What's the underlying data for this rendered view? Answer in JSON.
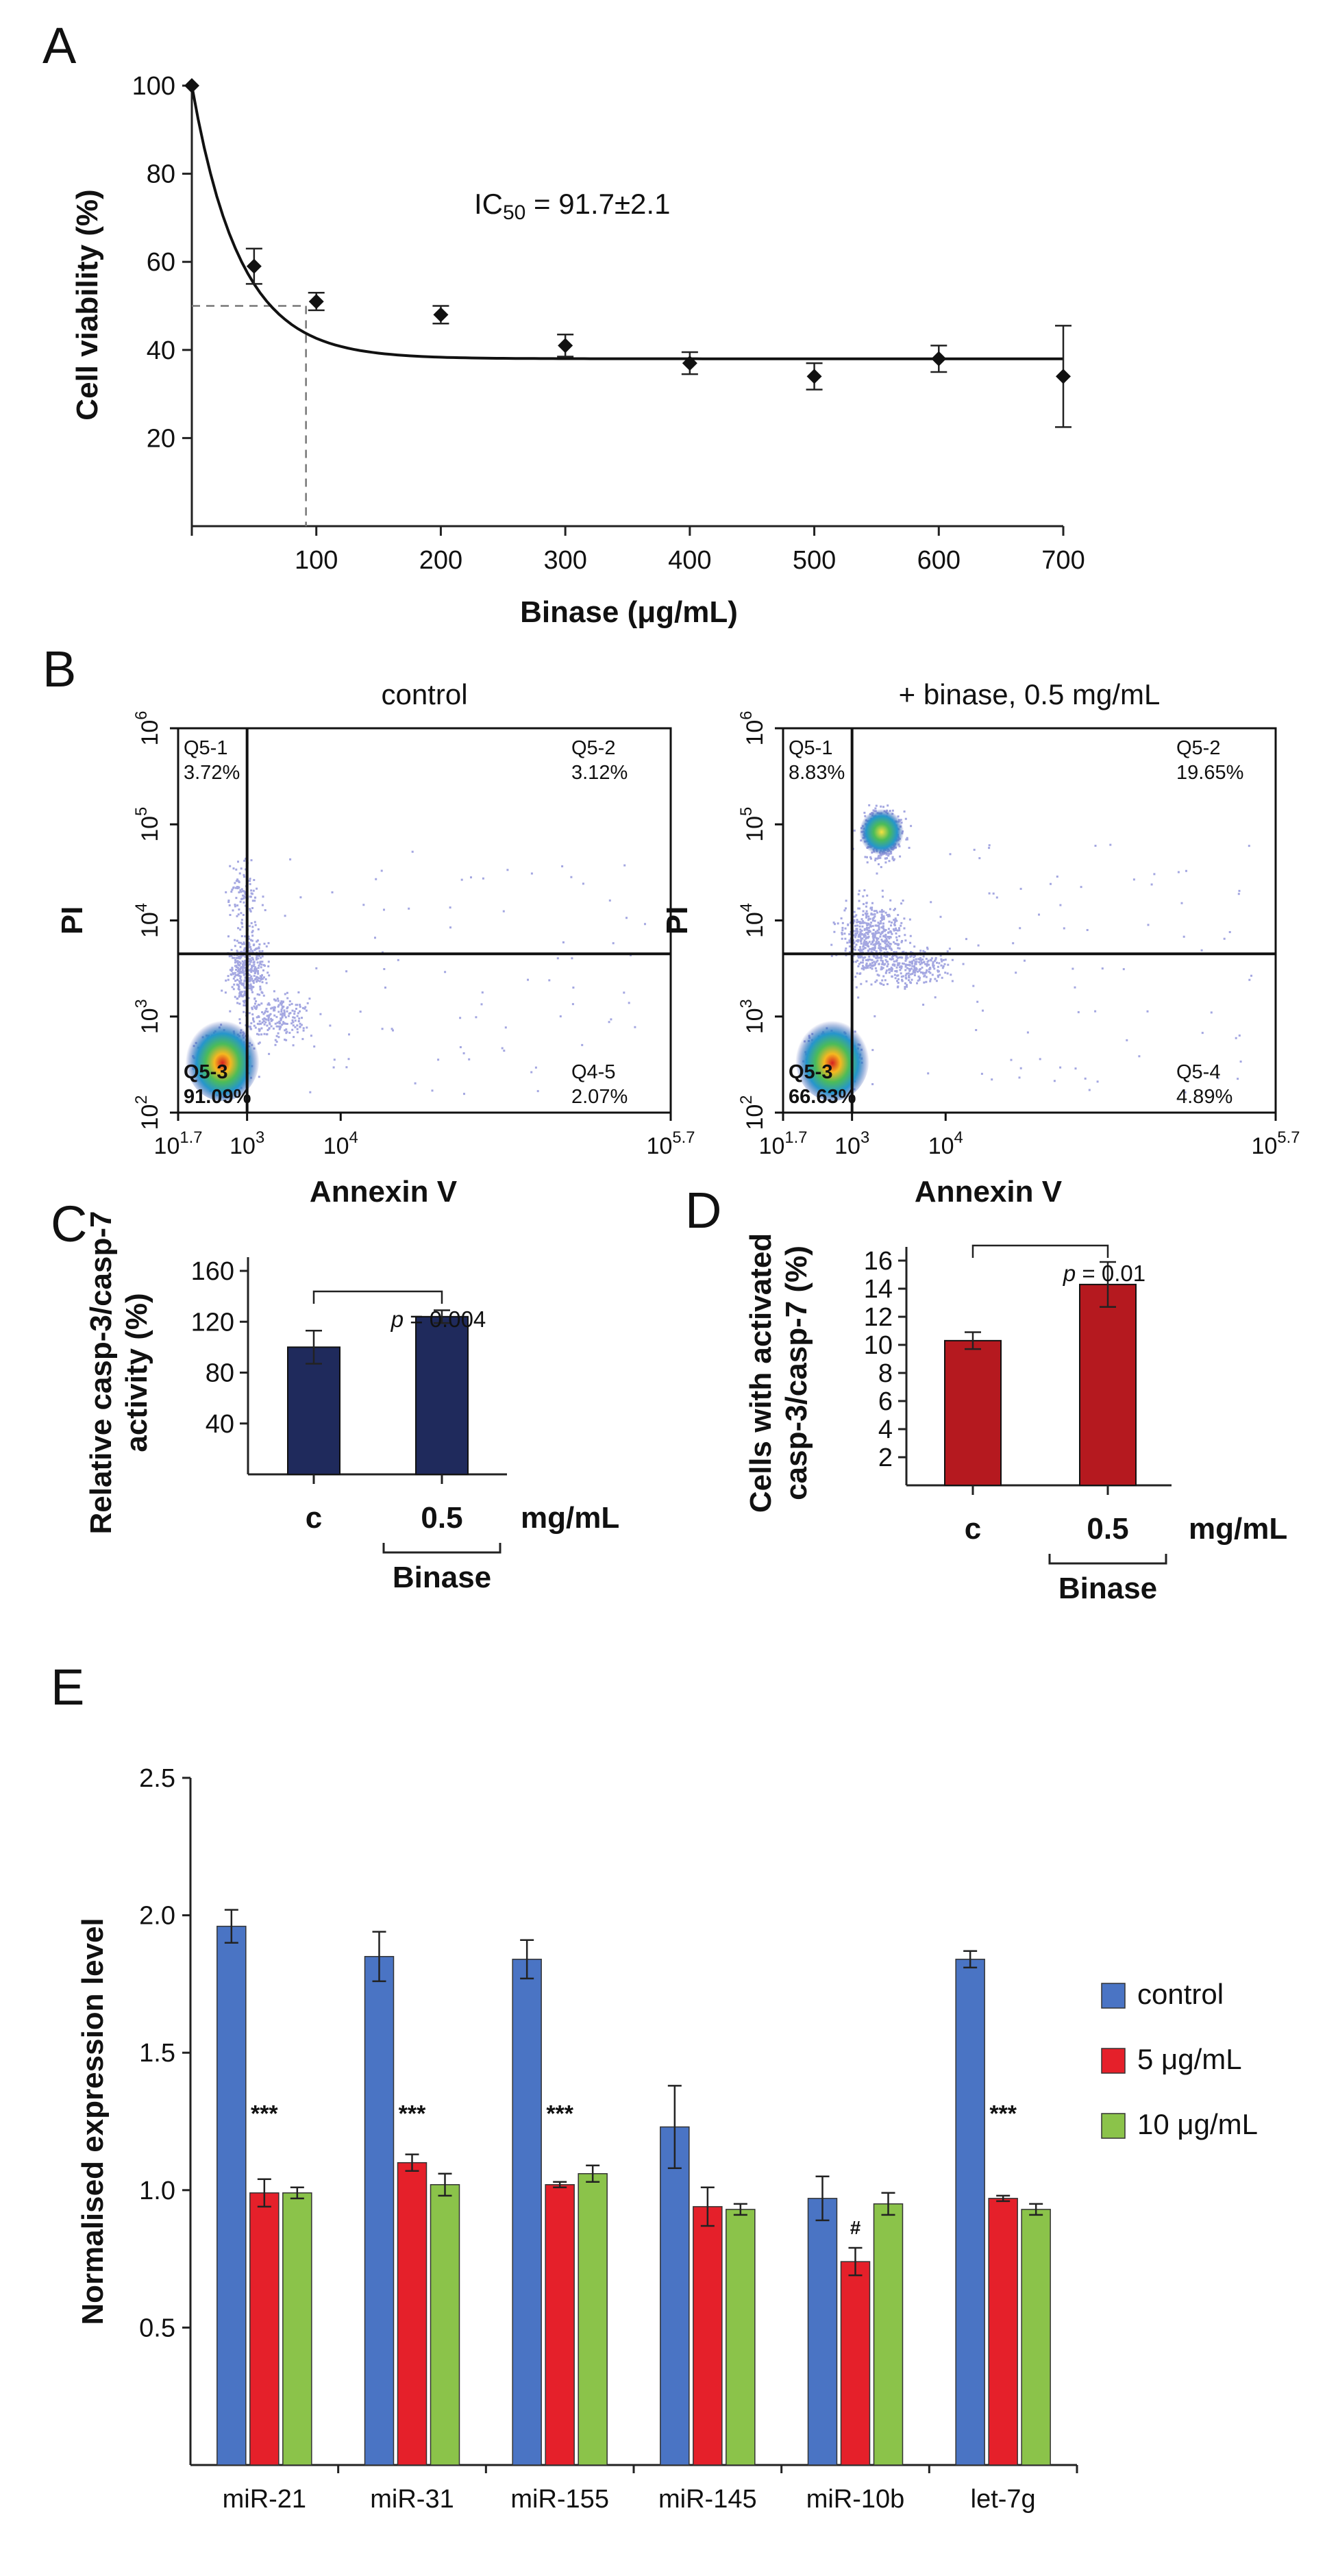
{
  "panels": {
    "A": "A",
    "B": "B",
    "C": "C",
    "D": "D",
    "E": "E"
  },
  "chart_data": [
    {
      "panel": "A",
      "type": "scatter",
      "xlabel": "Binase (μg/mL)",
      "ylabel": "Cell viability (%)",
      "xticks": [
        100,
        200,
        300,
        400,
        500,
        600,
        700
      ],
      "yticks": [
        20,
        40,
        60,
        80,
        100
      ],
      "xlim": [
        0,
        700
      ],
      "ylim": [
        0,
        100
      ],
      "x": [
        0,
        50,
        100,
        200,
        300,
        400,
        500,
        600,
        700
      ],
      "y": [
        100,
        59,
        51,
        48,
        41,
        37,
        34,
        38,
        34
      ],
      "yerr": [
        0,
        4,
        2,
        2,
        2.5,
        2.5,
        3,
        3,
        11.5
      ],
      "fit": {
        "plateau": 38,
        "span": 62,
        "rate": 0.0259
      },
      "ic50": {
        "x": 91.7,
        "y": 50
      },
      "annotation": "IC50 = 91.7±2.1",
      "annotation_parts": {
        "pre": "IC",
        "sub": "50",
        "post": " = 91.7±2.1"
      }
    },
    {
      "panel": "B",
      "type": "scatter",
      "xlabel": "Annexin V",
      "ylabel": "PI",
      "xticks": [
        "10^1.7",
        "10^3",
        "10^4",
        "10^5.7"
      ],
      "yticks": [
        "10^2",
        "10^3",
        "10^4",
        "10^5",
        "10^6"
      ],
      "plots": [
        {
          "title": "control",
          "quadrants": [
            {
              "name": "Q5-1",
              "value": "3.72%"
            },
            {
              "name": "Q5-2",
              "value": "3.12%"
            },
            {
              "name": "Q5-3",
              "value": "91.09%"
            },
            {
              "name": "Q4-5",
              "value": "2.07%"
            }
          ]
        },
        {
          "title": "+ binase, 0.5 mg/mL",
          "quadrants": [
            {
              "name": "Q5-1",
              "value": "8.83%"
            },
            {
              "name": "Q5-2",
              "value": "19.65%"
            },
            {
              "name": "Q5-3",
              "value": "66.63%"
            },
            {
              "name": "Q5-4",
              "value": "4.89%"
            }
          ]
        }
      ]
    },
    {
      "panel": "C",
      "type": "bar",
      "ylabel_lines": [
        "Relative casp-3/casp-7",
        "activity (%)"
      ],
      "categories": [
        "c",
        "0.5"
      ],
      "unit": "mg/mL",
      "group_label": "Binase",
      "values": [
        100,
        124
      ],
      "errors": [
        13,
        5
      ],
      "ylim": [
        0,
        160
      ],
      "yticks": [
        40,
        80,
        120,
        160
      ],
      "color": "#1f2a5c",
      "pvalue": "= 0.004"
    },
    {
      "panel": "D",
      "type": "bar",
      "ylabel_lines": [
        "Cells with activated",
        "casp-3/casp-7 (%)"
      ],
      "categories": [
        "c",
        "0.5"
      ],
      "unit": "mg/mL",
      "group_label": "Binase",
      "values": [
        10.3,
        14.3
      ],
      "errors": [
        0.6,
        1.6
      ],
      "ylim": [
        0,
        16
      ],
      "yticks": [
        2,
        4,
        6,
        8,
        10,
        12,
        14,
        16
      ],
      "color": "#b5191f",
      "pvalue": "= 0.01"
    },
    {
      "panel": "E",
      "type": "bar",
      "ylabel": "Normalised expression level",
      "categories": [
        "miR-21",
        "miR-31",
        "miR-155",
        "miR-145",
        "miR-10b",
        "let-7g"
      ],
      "ylim": [
        0,
        2.5
      ],
      "yticks": [
        "0.5",
        "1.0",
        "1.5",
        "2.0",
        "2.5"
      ],
      "series": [
        {
          "name": "control",
          "color": "#4a74c4",
          "values": [
            1.96,
            1.85,
            1.84,
            1.23,
            0.97,
            1.84
          ],
          "errors": [
            0.06,
            0.09,
            0.07,
            0.15,
            0.08,
            0.03
          ]
        },
        {
          "name": "5 μg/mL",
          "color": "#e5202a",
          "values": [
            0.99,
            1.1,
            1.02,
            0.94,
            0.74,
            0.97
          ],
          "errors": [
            0.05,
            0.03,
            0.01,
            0.07,
            0.05,
            0.01
          ]
        },
        {
          "name": "10 μg/mL",
          "color": "#8bc34a",
          "values": [
            0.99,
            1.02,
            1.06,
            0.93,
            0.95,
            0.93
          ],
          "errors": [
            0.02,
            0.04,
            0.03,
            0.02,
            0.04,
            0.02
          ]
        }
      ],
      "annotations": [
        "***",
        "***",
        "***",
        "",
        "#",
        "***"
      ]
    }
  ]
}
